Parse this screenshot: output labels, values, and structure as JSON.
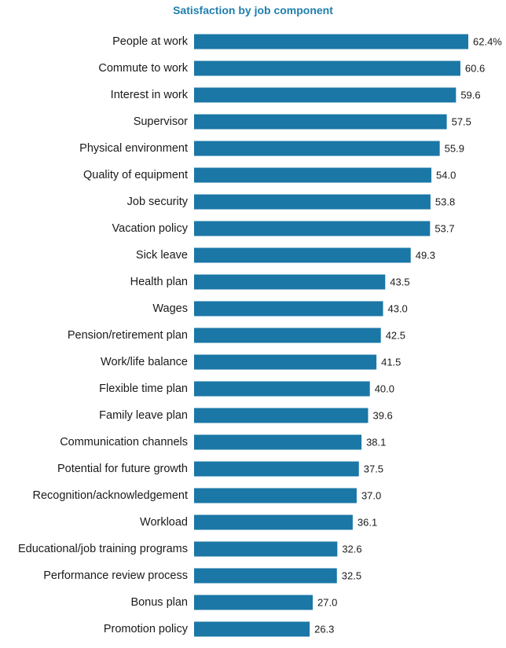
{
  "chart_data": {
    "type": "bar",
    "orientation": "horizontal",
    "title": "Satisfaction by job component",
    "xlabel": "",
    "ylabel": "",
    "categories": [
      "People at work",
      "Commute to work",
      "Interest in work",
      "Supervisor",
      "Physical environment",
      "Quality of equipment",
      "Job security",
      "Vacation policy",
      "Sick leave",
      "Health plan",
      "Wages",
      "Pension/retirement plan",
      "Work/life balance",
      "Flexible time plan",
      "Family leave plan",
      "Communication channels",
      "Potential for future growth",
      "Recognition/acknowledgement",
      "Workload",
      "Educational/job training programs",
      "Performance review process",
      "Bonus plan",
      "Promotion policy"
    ],
    "values": [
      62.4,
      60.6,
      59.6,
      57.5,
      55.9,
      54.0,
      53.8,
      53.7,
      49.3,
      43.5,
      43.0,
      42.5,
      41.5,
      40.0,
      39.6,
      38.1,
      37.5,
      37.0,
      36.1,
      32.6,
      32.5,
      27.0,
      26.3
    ],
    "value_labels": [
      "62.4%",
      "60.6",
      "59.6",
      "57.5",
      "55.9",
      "54.0",
      "53.8",
      "53.7",
      "49.3",
      "43.5",
      "43.0",
      "42.5",
      "41.5",
      "40.0",
      "39.6",
      "38.1",
      "37.5",
      "37.0",
      "36.1",
      "32.6",
      "32.5",
      "27.0",
      "26.3"
    ],
    "xlim": [
      0,
      62.4
    ],
    "grid": false,
    "legend": "none",
    "bar_color": "#1a77a6"
  }
}
